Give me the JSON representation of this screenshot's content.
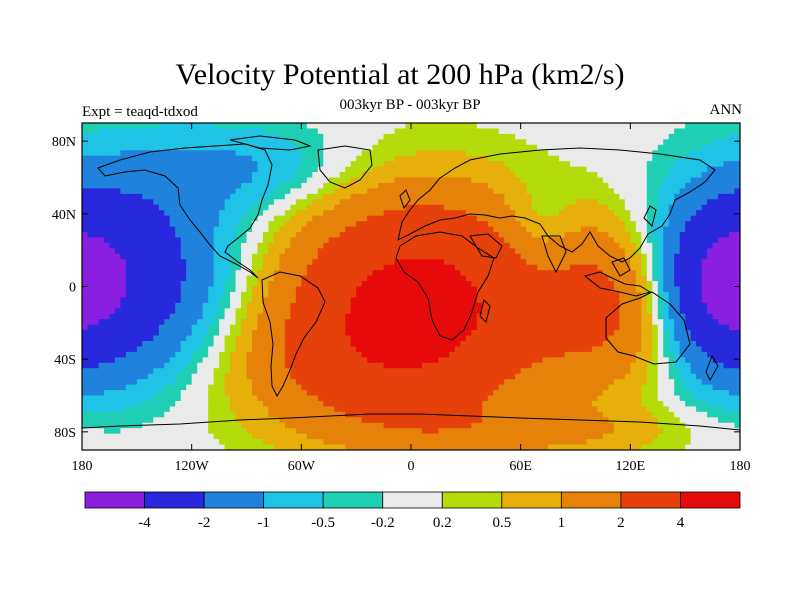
{
  "title": "Velocity Potential at 200 hPa (km2/s)",
  "left_label": "Expt = teaqd-tdxod",
  "center_label": "003kyr BP - 003kyr BP",
  "right_label": "ANN",
  "map": {
    "projection": "cylindrical-equidistant",
    "lon_range": [
      -180,
      180
    ],
    "lat_range": [
      -90,
      90
    ],
    "lat_ticks": [
      {
        "value": 80,
        "label": "80N"
      },
      {
        "value": 40,
        "label": "40N"
      },
      {
        "value": 0,
        "label": "0"
      },
      {
        "value": -40,
        "label": "40S"
      },
      {
        "value": -80,
        "label": "80S"
      }
    ],
    "lon_ticks": [
      {
        "value": -180,
        "label": "180"
      },
      {
        "value": -120,
        "label": "120W"
      },
      {
        "value": -60,
        "label": "60W"
      },
      {
        "value": 0,
        "label": "0"
      },
      {
        "value": 60,
        "label": "60E"
      },
      {
        "value": 120,
        "label": "120E"
      },
      {
        "value": 180,
        "label": "180"
      }
    ]
  },
  "colorbar": {
    "colors": [
      "#8a1fe0",
      "#2828dc",
      "#1f82dc",
      "#1ec3e6",
      "#1ecfb4",
      "#eaeaea",
      "#b4dc0a",
      "#e6af0a",
      "#e6820a",
      "#e6410a",
      "#e60a0a"
    ],
    "labels": [
      "-4",
      "-2",
      "-1",
      "-0.5",
      "-0.2",
      "0.2",
      "0.5",
      "1",
      "2",
      "4"
    ]
  },
  "chart_data": {
    "type": "heatmap",
    "title": "Velocity Potential at 200 hPa (km2/s)",
    "levels": [
      -4,
      -2,
      -1,
      -0.5,
      -0.2,
      0.2,
      0.5,
      1,
      2,
      4
    ],
    "field_centers": [
      {
        "lon": 5,
        "lat": -5,
        "amp": 4.5,
        "rlon": 70,
        "rlat": 55
      },
      {
        "lon": -30,
        "lat": -45,
        "amp": 1.5,
        "rlon": 80,
        "rlat": 40
      },
      {
        "lon": 110,
        "lat": -10,
        "amp": 2.2,
        "rlon": 40,
        "rlat": 45
      },
      {
        "lon": -165,
        "lat": 5,
        "amp": -3.5,
        "rlon": 60,
        "rlat": 55
      },
      {
        "lon": 170,
        "lat": 0,
        "amp": -2.5,
        "rlon": 30,
        "rlat": 40
      },
      {
        "lon": 70,
        "lat": 30,
        "amp": -0.8,
        "rlon": 20,
        "rlat": 25
      },
      {
        "lon": -90,
        "lat": 65,
        "amp": -1.0,
        "rlon": 60,
        "rlat": 25
      },
      {
        "lon": 60,
        "lat": -80,
        "amp": 1.0,
        "rlon": 90,
        "rlat": 15
      }
    ]
  }
}
